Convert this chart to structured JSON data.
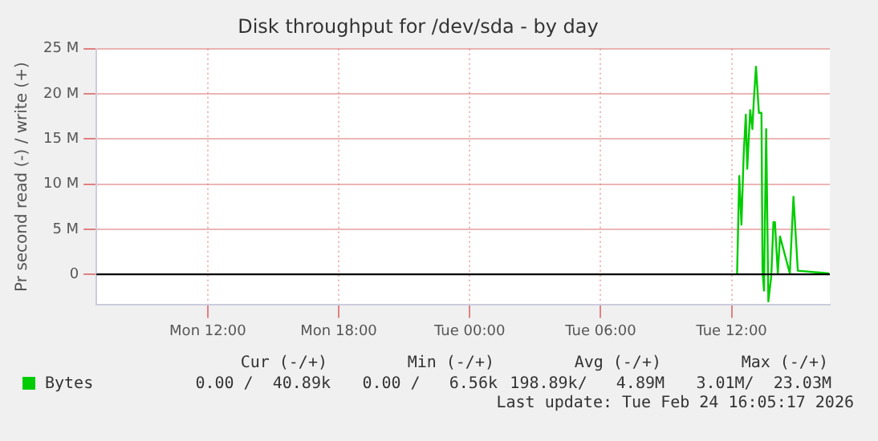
{
  "chart_data": {
    "type": "line",
    "title": "Disk throughput for /dev/sda - by day",
    "ylabel": "Pr second read (-) / write (+)",
    "x": [
      "2026-02-24T12:15",
      "2026-02-24T12:21",
      "2026-02-24T12:27",
      "2026-02-24T12:33",
      "2026-02-24T12:39",
      "2026-02-24T12:43",
      "2026-02-24T12:51",
      "2026-02-24T12:57",
      "2026-02-24T13:01",
      "2026-02-24T13:07",
      "2026-02-24T13:15",
      "2026-02-24T13:22",
      "2026-02-24T13:25",
      "2026-02-24T13:29",
      "2026-02-24T13:35",
      "2026-02-24T13:41",
      "2026-02-24T13:49",
      "2026-02-24T13:55",
      "2026-02-24T13:59",
      "2026-02-24T14:07",
      "2026-02-24T14:13",
      "2026-02-24T14:40",
      "2026-02-24T14:43",
      "2026-02-24T14:50",
      "2026-02-24T15:02",
      "2026-02-24T16:28"
    ],
    "series": [
      {
        "name": "Bytes",
        "color": "#00cc00",
        "values": [
          0,
          10.9,
          5.5,
          13.1,
          17.7,
          11.7,
          18.2,
          16.1,
          19.3,
          23.0,
          17.9,
          17.9,
          0.4,
          -1.8,
          16.1,
          -3.0,
          -0.2,
          5.8,
          5.8,
          0.1,
          4.2,
          0.1,
          0.1,
          8.6,
          0.4,
          0.1
        ]
      }
    ],
    "xlim": [
      "2026-02-23T06:54",
      "2026-02-24T16:30"
    ],
    "xticks": [
      {
        "value": "2026-02-23T12:00",
        "label": "Mon 12:00"
      },
      {
        "value": "2026-02-23T18:00",
        "label": "Mon 18:00"
      },
      {
        "value": "2026-02-24T00:00",
        "label": "Tue 00:00"
      },
      {
        "value": "2026-02-24T06:00",
        "label": "Tue 06:00"
      },
      {
        "value": "2026-02-24T12:00",
        "label": "Tue 12:00"
      }
    ],
    "ylim": [
      -3.4,
      25
    ],
    "yticks": [
      {
        "value": 0,
        "label": "0"
      },
      {
        "value": 5,
        "label": "5 M"
      },
      {
        "value": 10,
        "label": "10 M"
      },
      {
        "value": 15,
        "label": "15 M"
      },
      {
        "value": 20,
        "label": "20 M"
      },
      {
        "value": 25,
        "label": "25 M"
      }
    ],
    "ref_lines": [
      {
        "axis": "y",
        "value": 0,
        "color": "#000000"
      }
    ],
    "grid": true,
    "legend": "bottom",
    "marker": "none",
    "line_style": "solid",
    "annotations": [
      "Cur (-/+)",
      "0.00 /  40.89k",
      "Min (-/+)",
      "0.00 /   6.56k",
      "Avg (-/+)",
      "198.89k/   4.89M",
      "Max (-/+)",
      "3.01M/  23.03M",
      "Last update: Tue Feb 24 16:05:17 2026"
    ]
  }
}
